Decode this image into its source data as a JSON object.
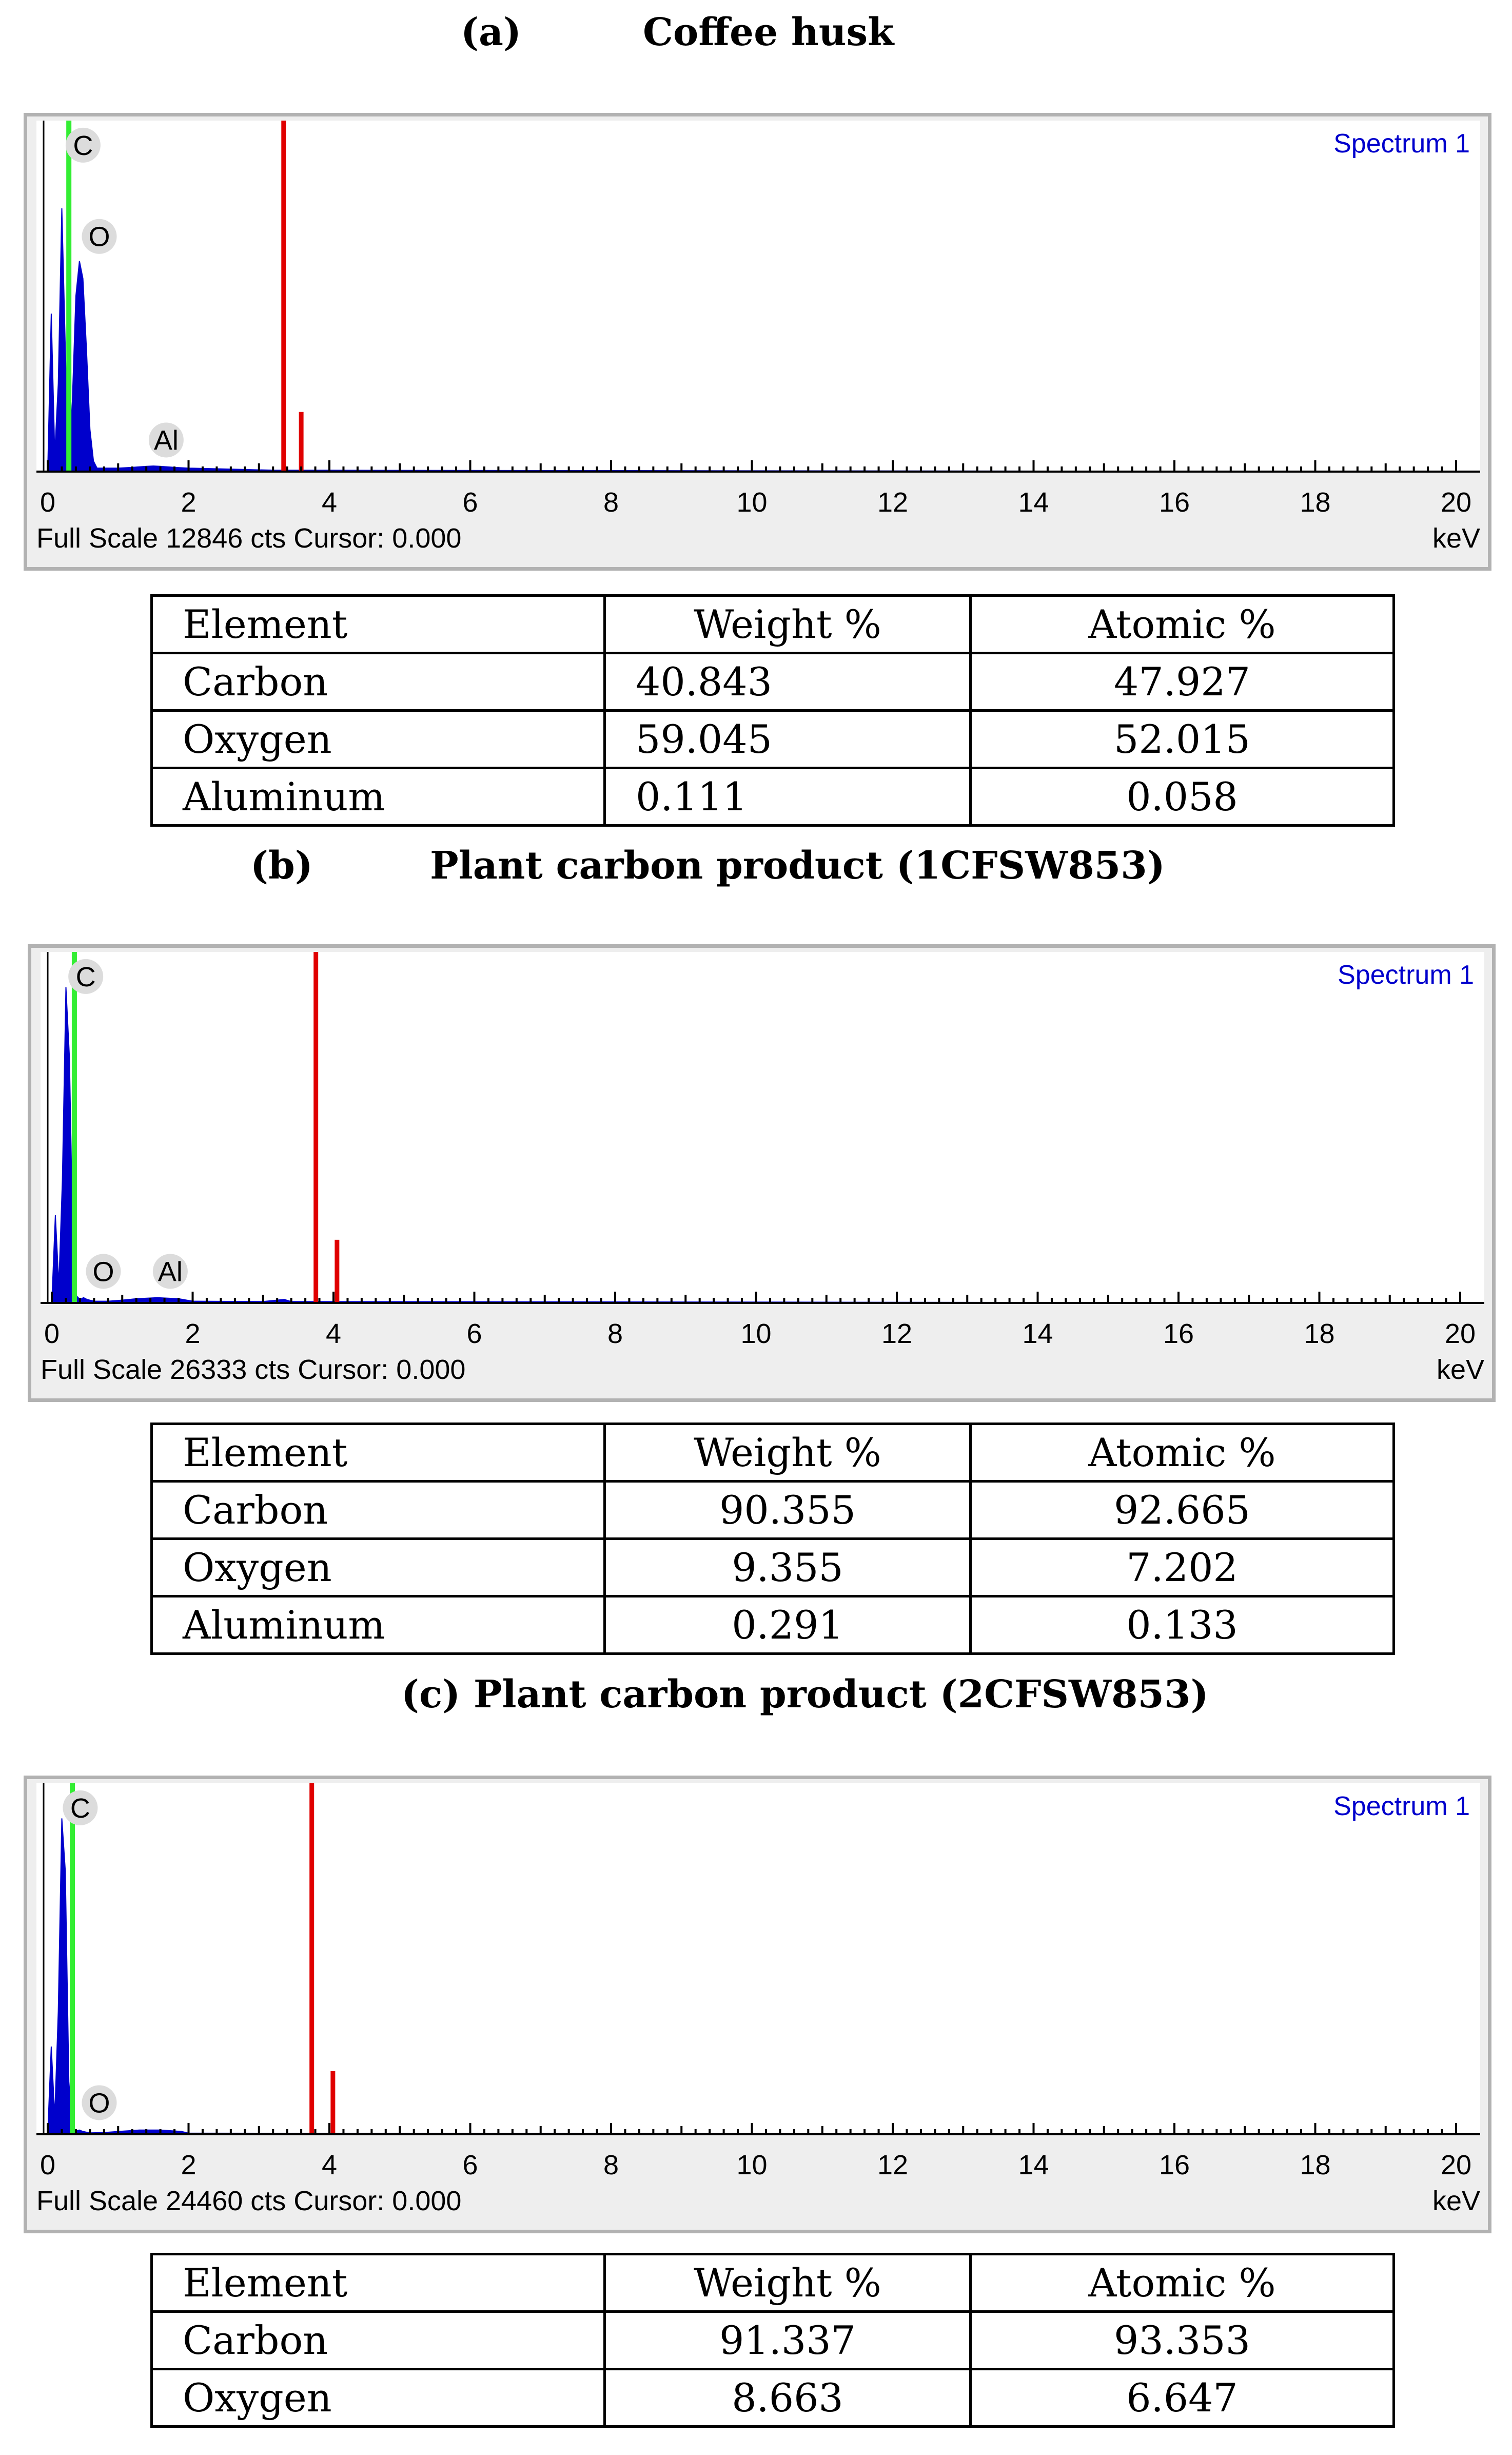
{
  "panels": [
    {
      "heading_letter": "(a)",
      "heading_title": "Coffee husk",
      "spectrum_name": "Spectrum 1",
      "footer": "Full Scale 12846 cts Cursor: 0.000",
      "unit": "keV",
      "table": {
        "headers": [
          "Element",
          "Weight %",
          "Atomic %"
        ],
        "rows": [
          [
            "Carbon",
            "40.843",
            "47.927"
          ],
          [
            "Oxygen",
            "59.045",
            "52.015"
          ],
          [
            "Aluminum",
            "0.111",
            "0.058"
          ]
        ]
      }
    },
    {
      "heading_letter": "(b)",
      "heading_title": "Plant carbon product (1CFSW853)",
      "spectrum_name": "Spectrum 1",
      "footer": "Full Scale 26333 cts Cursor: 0.000",
      "unit": "keV",
      "table": {
        "headers": [
          "Element",
          "Weight %",
          "Atomic %"
        ],
        "rows": [
          [
            "Carbon",
            "90.355",
            "92.665"
          ],
          [
            "Oxygen",
            "9.355",
            "7.202"
          ],
          [
            "Aluminum",
            "0.291",
            "0.133"
          ]
        ]
      }
    },
    {
      "heading_letter": "",
      "heading_title": "(c) Plant carbon product (2CFSW853)",
      "spectrum_name": "Spectrum 1",
      "footer": "Full Scale 24460 cts Cursor: 0.000",
      "unit": "keV",
      "table": {
        "headers": [
          "Element",
          "Weight %",
          "Atomic %"
        ],
        "rows": [
          [
            "Carbon",
            "91.337",
            "93.353"
          ],
          [
            "Oxygen",
            "8.663",
            "6.647"
          ]
        ]
      }
    }
  ],
  "colors": {
    "spectrum_fill": "#0000cc",
    "marker_red": "#e00000",
    "cursor_green": "#33ee33",
    "frame": "#b2b2b2",
    "frame_bg": "#eeeeee",
    "label_circle": "#dcdcdc"
  },
  "chart_data": [
    {
      "type": "area",
      "x_unit": "keV",
      "xlim": [
        0,
        20
      ],
      "x_ticks": [
        0,
        2,
        4,
        6,
        8,
        10,
        12,
        14,
        16,
        18,
        20
      ],
      "ylim": [
        0,
        1
      ],
      "series": [
        {
          "x": [
            0,
            0.05,
            0.1,
            0.15,
            0.2,
            0.25,
            0.3,
            0.35,
            0.4,
            0.45,
            0.5,
            0.55,
            0.6,
            0.65,
            0.7,
            0.8,
            1.0,
            1.2,
            1.4,
            1.5,
            1.6,
            1.8,
            2.0,
            2.4,
            2.8,
            3.2,
            20
          ],
          "y": [
            0,
            0.45,
            0.05,
            0.25,
            0.75,
            0.35,
            0.03,
            0.2,
            0.5,
            0.6,
            0.55,
            0.35,
            0.12,
            0.03,
            0.01,
            0.01,
            0.01,
            0.012,
            0.015,
            0.016,
            0.015,
            0.012,
            0.01,
            0.008,
            0.006,
            0.004,
            0
          ]
        }
      ],
      "cursor_keV": 0.3,
      "markers": [
        {
          "x": 3.35,
          "height": 1.0
        },
        {
          "x": 3.6,
          "height": 0.17
        }
      ],
      "element_labels": [
        {
          "text": "C",
          "x": 0.32,
          "height": 0.93
        },
        {
          "text": "O",
          "x": 0.55,
          "height": 0.67
        },
        {
          "text": "Al",
          "x": 1.5,
          "height": 0.09
        }
      ]
    },
    {
      "type": "area",
      "x_unit": "keV",
      "xlim": [
        0,
        20
      ],
      "x_ticks": [
        0,
        2,
        4,
        6,
        8,
        10,
        12,
        14,
        16,
        18,
        20
      ],
      "ylim": [
        0,
        1
      ],
      "series": [
        {
          "x": [
            0,
            0.05,
            0.1,
            0.15,
            0.2,
            0.25,
            0.3,
            0.35,
            0.4,
            0.45,
            0.5,
            0.6,
            0.8,
            1.0,
            1.2,
            1.5,
            1.8,
            2.0,
            3.0,
            3.3,
            3.4,
            20
          ],
          "y": [
            0,
            0.25,
            0.05,
            0.35,
            0.9,
            0.7,
            0.15,
            0.02,
            0.01,
            0.015,
            0.01,
            0.005,
            0.005,
            0.008,
            0.012,
            0.015,
            0.012,
            0.005,
            0.004,
            0.01,
            0.004,
            0
          ]
        }
      ],
      "cursor_keV": 0.32,
      "markers": [
        {
          "x": 3.75,
          "height": 1.0
        },
        {
          "x": 4.05,
          "height": 0.18
        }
      ],
      "element_labels": [
        {
          "text": "C",
          "x": 0.3,
          "height": 0.93
        },
        {
          "text": "O",
          "x": 0.55,
          "height": 0.09
        },
        {
          "text": "Al",
          "x": 1.5,
          "height": 0.09
        }
      ]
    },
    {
      "type": "area",
      "x_unit": "keV",
      "xlim": [
        0,
        20
      ],
      "x_ticks": [
        0,
        2,
        4,
        6,
        8,
        10,
        12,
        14,
        16,
        18,
        20
      ],
      "ylim": [
        0,
        1
      ],
      "series": [
        {
          "x": [
            0,
            0.05,
            0.1,
            0.15,
            0.2,
            0.25,
            0.3,
            0.35,
            0.4,
            0.45,
            0.5,
            0.6,
            0.8,
            1.0,
            1.3,
            1.6,
            1.9,
            2.0,
            20
          ],
          "y": [
            0,
            0.25,
            0.05,
            0.35,
            0.9,
            0.75,
            0.15,
            0.02,
            0.01,
            0.012,
            0.008,
            0.004,
            0.005,
            0.008,
            0.012,
            0.012,
            0.008,
            0.003,
            0
          ]
        }
      ],
      "cursor_keV": 0.35,
      "markers": [
        {
          "x": 3.75,
          "height": 1.0
        },
        {
          "x": 4.05,
          "height": 0.18
        }
      ],
      "element_labels": [
        {
          "text": "C",
          "x": 0.28,
          "height": 0.93
        },
        {
          "text": "O",
          "x": 0.55,
          "height": 0.09
        }
      ]
    }
  ]
}
